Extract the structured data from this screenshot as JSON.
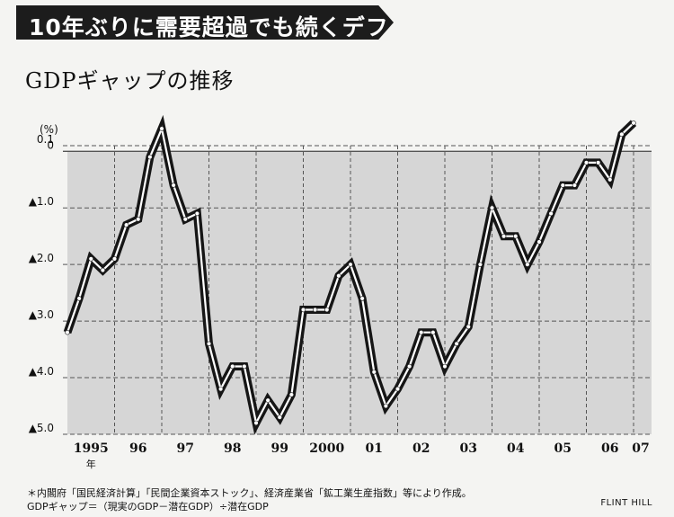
{
  "headline": "10年ぶりに需要超過でも続くデフレ",
  "subtitle": "GDPギャップの推移",
  "unit": "(%)",
  "footnote": {
    "line1": "＊内閣府「国民経済計算」「民間企業資本ストック」、経済産業省「鉱工業生産指数」等により作成。",
    "line2": "GDPギャップ＝（現実のGDP－潜在GDP）÷潜在GDP"
  },
  "credit": "FLINT HILL",
  "colors": {
    "line": "#161616",
    "shaded_region": "#d6d6d6",
    "grid": "#555555",
    "headline_bg": "#1c1c1c"
  },
  "chart_data": {
    "type": "line",
    "ylim": [
      -5.0,
      0.1
    ],
    "y_ticks": [
      {
        "value": 0.1,
        "label": "0.1"
      },
      {
        "value": 0,
        "label": "0"
      },
      {
        "value": -1.0,
        "label": "▲1.0"
      },
      {
        "value": -2.0,
        "label": "▲2.0"
      },
      {
        "value": -3.0,
        "label": "▲3.0"
      },
      {
        "value": -4.0,
        "label": "▲4.0"
      },
      {
        "value": -5.0,
        "label": "▲5.0"
      }
    ],
    "x_labels": [
      "1995",
      "96",
      "97",
      "98",
      "99",
      "2000",
      "01",
      "02",
      "03",
      "04",
      "05",
      "06",
      "07"
    ],
    "x_suffix": "年",
    "grid": true,
    "negative_region_shaded": true,
    "series": [
      {
        "x": [
          "1995Q1",
          "1995Q2",
          "1995Q3",
          "1995Q4",
          "1996Q1",
          "1996Q2",
          "1996Q3",
          "1996Q4",
          "1997Q1",
          "1997Q2",
          "1997Q3",
          "1997Q4",
          "1998Q1",
          "1998Q2",
          "1998Q3",
          "1998Q4",
          "1999Q1",
          "1999Q2",
          "1999Q3",
          "1999Q4",
          "2000Q1",
          "2000Q2",
          "2000Q3",
          "2000Q4",
          "2001Q1",
          "2001Q2",
          "2001Q3",
          "2001Q4",
          "2002Q1",
          "2002Q2",
          "2002Q3",
          "2002Q4",
          "2003Q1",
          "2003Q2",
          "2003Q3",
          "2003Q4",
          "2004Q1",
          "2004Q2",
          "2004Q3",
          "2004Q4",
          "2005Q1",
          "2005Q2",
          "2005Q3",
          "2005Q4",
          "2006Q1",
          "2006Q2",
          "2006Q3",
          "2006Q4",
          "2007Q1"
        ],
        "values": [
          -3.2,
          -2.6,
          -1.9,
          -2.1,
          -1.9,
          -1.3,
          -1.2,
          -0.1,
          0.4,
          -0.6,
          -1.2,
          -1.1,
          -3.4,
          -4.2,
          -3.8,
          -3.8,
          -4.8,
          -4.4,
          -4.7,
          -4.3,
          -2.8,
          -2.8,
          -2.8,
          -2.2,
          -2.0,
          -2.6,
          -3.9,
          -4.5,
          -4.2,
          -3.8,
          -3.2,
          -3.2,
          -3.8,
          -3.4,
          -3.1,
          -2.0,
          -1.0,
          -1.5,
          -1.5,
          -2.0,
          -1.6,
          -1.1,
          -0.6,
          -0.6,
          -0.2,
          -0.2,
          -0.5,
          0.3,
          0.5
        ]
      }
    ]
  }
}
